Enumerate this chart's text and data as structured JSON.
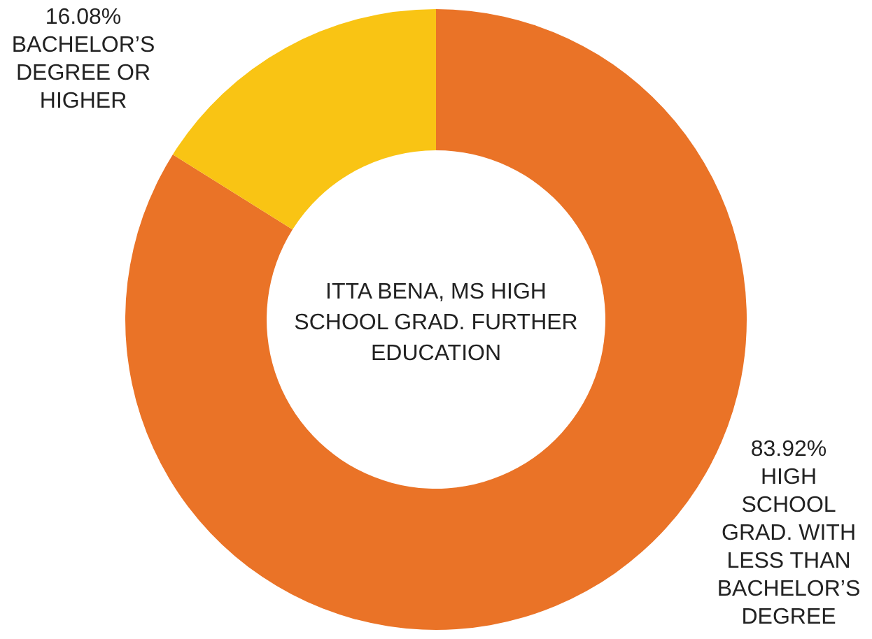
{
  "chart_data": {
    "type": "donut",
    "title": "ITTA BENA, MS HIGH SCHOOL GRAD. FURTHER EDUCATION",
    "categories": [
      "HIGH SCHOOL GRAD. WITH LESS THAN BACHELOR’S DEGREE",
      "BACHELOR’S DEGREE OR HIGHER"
    ],
    "values": [
      83.92,
      16.08
    ],
    "colors": [
      "#ea7327",
      "#f9c414"
    ],
    "value_labels": [
      "83.92%",
      "16.08%"
    ]
  }
}
